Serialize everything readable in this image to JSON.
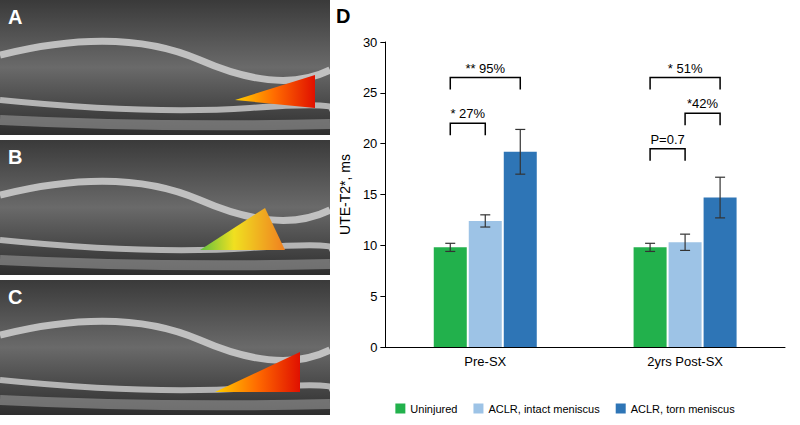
{
  "image_panels": [
    "A",
    "B",
    "C"
  ],
  "chart_data": {
    "type": "bar",
    "panel_label": "D",
    "ylabel": "UTE-T2*, ms",
    "categories": [
      "Pre-SX",
      "2yrs Post-SX"
    ],
    "series": [
      {
        "name": "Uninjured",
        "color": "#22b14c",
        "values": [
          9.8,
          9.8
        ],
        "errors": [
          0.4,
          0.4
        ]
      },
      {
        "name": "ACLR, intact meniscus",
        "color": "#9dc3e6",
        "values": [
          12.4,
          10.3
        ],
        "errors": [
          0.6,
          0.8
        ]
      },
      {
        "name": "ACLR, torn meniscus",
        "color": "#2e75b6",
        "values": [
          19.2,
          14.7
        ],
        "errors": [
          2.2,
          2.0
        ]
      }
    ],
    "annotations": [
      {
        "category": "Pre-SX",
        "from": "Uninjured",
        "to": "ACLR, torn meniscus",
        "y": 26.5,
        "text": "** 95%"
      },
      {
        "category": "Pre-SX",
        "from": "Uninjured",
        "to": "ACLR, intact meniscus",
        "y": 22,
        "text": "* 27%"
      },
      {
        "category": "2yrs Post-SX",
        "from": "Uninjured",
        "to": "ACLR, torn meniscus",
        "y": 26.5,
        "text": "* 51%"
      },
      {
        "category": "2yrs Post-SX",
        "from": "ACLR, intact meniscus",
        "to": "ACLR, torn meniscus",
        "y": 23,
        "text": "*42%"
      },
      {
        "category": "2yrs Post-SX",
        "from": "Uninjured",
        "to": "ACLR, intact meniscus",
        "y": 19.5,
        "text": "P=0.7"
      }
    ],
    "ylim": [
      0,
      30
    ],
    "yticks": [
      0,
      5,
      10,
      15,
      20,
      25,
      30
    ],
    "grid": false,
    "legend": "bottom"
  }
}
